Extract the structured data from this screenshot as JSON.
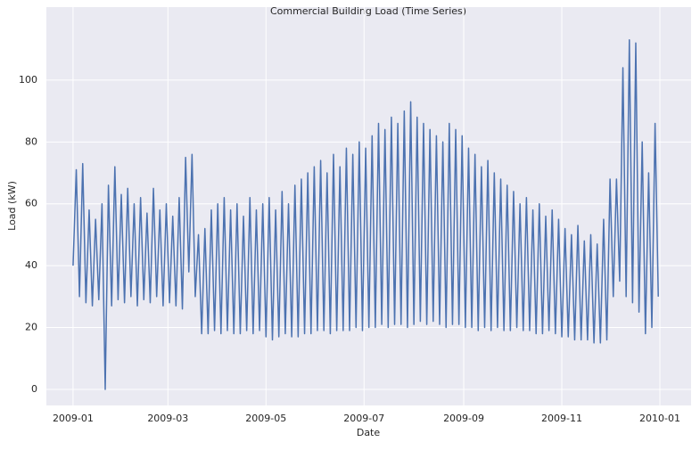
{
  "chart_data": {
    "type": "line",
    "title": "Commercial Building Load (Time Series)",
    "x_label": "Date",
    "y_label": "Load (kW)",
    "x": [
      0,
      2,
      4,
      6,
      8,
      10,
      12,
      14,
      16,
      18,
      20,
      22,
      24,
      26,
      28,
      30,
      32,
      34,
      36,
      38,
      40,
      42,
      44,
      46,
      48,
      50,
      52,
      54,
      56,
      58,
      60,
      62,
      64,
      66,
      68,
      70,
      72,
      74,
      76,
      78,
      80,
      82,
      84,
      86,
      88,
      90,
      92,
      94,
      96,
      98,
      100,
      102,
      104,
      106,
      108,
      110,
      112,
      114,
      116,
      118,
      120,
      122,
      124,
      126,
      128,
      130,
      132,
      134,
      136,
      138,
      140,
      142,
      144,
      146,
      148,
      150,
      152,
      154,
      156,
      158,
      160,
      162,
      164,
      166,
      168,
      170,
      172,
      174,
      176,
      178,
      180,
      182,
      184,
      186,
      188,
      190,
      192,
      194,
      196,
      198,
      200,
      202,
      204,
      206,
      208,
      210,
      212,
      214,
      216,
      218,
      220,
      222,
      224,
      226,
      228,
      230,
      232,
      234,
      236,
      238,
      240,
      242,
      244,
      246,
      248,
      250,
      252,
      254,
      256,
      258,
      260,
      262,
      264,
      266,
      268,
      270,
      272,
      274,
      276,
      278,
      280,
      282,
      284,
      286,
      288,
      290,
      292,
      294,
      296,
      298,
      300,
      302,
      304,
      306,
      308,
      310,
      312,
      314,
      316,
      318,
      320,
      322,
      324,
      326,
      328,
      330,
      332,
      334,
      336,
      338,
      340,
      342,
      344,
      346,
      348,
      350,
      352,
      354,
      356,
      358,
      360,
      362,
      364
    ],
    "values": [
      40,
      71,
      30,
      73,
      28,
      58,
      27,
      55,
      29,
      60,
      0,
      66,
      27,
      72,
      29,
      63,
      28,
      65,
      30,
      60,
      27,
      62,
      29,
      57,
      28,
      65,
      30,
      58,
      27,
      60,
      28,
      56,
      27,
      62,
      26,
      75,
      38,
      76,
      30,
      50,
      18,
      52,
      18,
      58,
      19,
      60,
      18,
      62,
      19,
      58,
      18,
      60,
      18,
      56,
      19,
      62,
      18,
      58,
      19,
      60,
      17,
      62,
      16,
      58,
      17,
      64,
      18,
      60,
      17,
      66,
      17,
      68,
      18,
      70,
      18,
      72,
      19,
      74,
      19,
      70,
      18,
      76,
      19,
      72,
      19,
      78,
      19,
      76,
      20,
      80,
      19,
      78,
      20,
      82,
      20,
      86,
      21,
      84,
      20,
      88,
      21,
      86,
      21,
      90,
      20,
      93,
      21,
      88,
      22,
      86,
      21,
      84,
      22,
      82,
      21,
      80,
      20,
      86,
      21,
      84,
      21,
      82,
      20,
      78,
      20,
      76,
      19,
      72,
      20,
      74,
      19,
      70,
      20,
      68,
      19,
      66,
      19,
      64,
      20,
      60,
      19,
      62,
      19,
      58,
      18,
      60,
      18,
      56,
      19,
      58,
      18,
      55,
      17,
      52,
      17,
      50,
      16,
      53,
      16,
      48,
      16,
      50,
      15,
      47,
      15,
      55,
      16,
      68,
      30,
      68,
      35,
      104,
      30,
      113,
      28,
      112,
      25,
      80,
      18,
      70,
      20,
      86,
      30
    ],
    "color": "#4c72b0",
    "xlim": [
      -16.6,
      384.4
    ],
    "xticks": [
      {
        "value": 0,
        "label": "2009-01"
      },
      {
        "value": 59,
        "label": "2009-03"
      },
      {
        "value": 120,
        "label": "2009-05"
      },
      {
        "value": 181,
        "label": "2009-07"
      },
      {
        "value": 243,
        "label": "2009-09"
      },
      {
        "value": 304,
        "label": "2009-11"
      },
      {
        "value": 365,
        "label": "2010-01"
      }
    ],
    "ylim": [
      -5.2,
      123.6
    ],
    "yticks": [
      0,
      20,
      40,
      60,
      80,
      100
    ],
    "grid": true
  }
}
